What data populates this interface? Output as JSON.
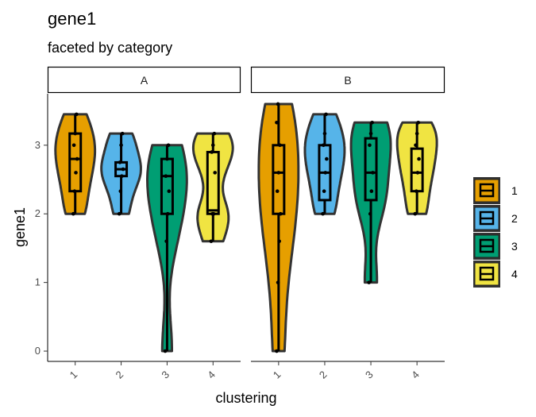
{
  "chart_data": {
    "type": "violin",
    "title": "gene1",
    "subtitle": "faceted by category",
    "xlabel": "clustering",
    "ylabel": "gene1",
    "ylim": [
      -0.15,
      3.75
    ],
    "yticks": [
      0,
      1,
      2,
      3
    ],
    "categories": [
      "1",
      "2",
      "3",
      "4"
    ],
    "legend": {
      "position": "right",
      "entries": [
        "1",
        "2",
        "3",
        "4"
      ]
    },
    "colors": {
      "1": "#E69F00",
      "2": "#56B4E9",
      "3": "#009E73",
      "4": "#F0E442"
    },
    "facets": [
      {
        "label": "A",
        "groups": [
          {
            "cluster": "1",
            "min": 2.0,
            "q1": 2.33,
            "median": 2.8,
            "q3": 3.17,
            "max": 3.45,
            "points": [
              2.0,
              2.33,
              2.6,
              2.8,
              3.0,
              3.17,
              3.45
            ]
          },
          {
            "cluster": "2",
            "min": 2.0,
            "q1": 2.55,
            "median": 2.65,
            "q3": 2.75,
            "max": 3.17,
            "points": [
              2.0,
              2.33,
              2.55,
              2.65,
              2.75,
              3.0,
              3.17
            ]
          },
          {
            "cluster": "3",
            "min": 0.0,
            "q1": 2.0,
            "median": 2.55,
            "q3": 2.8,
            "max": 3.0,
            "points": [
              0.0,
              1.6,
              2.0,
              2.33,
              2.55,
              2.8,
              3.0
            ]
          },
          {
            "cluster": "4",
            "min": 1.6,
            "q1": 2.0,
            "median": 2.05,
            "q3": 2.9,
            "max": 3.17,
            "points": [
              1.6,
              2.0,
              2.0,
              2.6,
              2.9,
              3.0,
              3.17
            ]
          }
        ]
      },
      {
        "label": "B",
        "groups": [
          {
            "cluster": "1",
            "min": 0.0,
            "q1": 2.0,
            "median": 2.6,
            "q3": 3.0,
            "max": 3.6,
            "points": [
              0.0,
              1.0,
              1.6,
              2.0,
              2.33,
              2.6,
              3.0,
              3.33,
              3.6
            ]
          },
          {
            "cluster": "2",
            "min": 2.0,
            "q1": 2.2,
            "median": 2.6,
            "q3": 3.0,
            "max": 3.45,
            "points": [
              2.0,
              2.33,
              2.6,
              2.8,
              3.0,
              3.17,
              3.45
            ]
          },
          {
            "cluster": "3",
            "min": 1.0,
            "q1": 2.2,
            "median": 2.6,
            "q3": 3.1,
            "max": 3.33,
            "points": [
              1.0,
              2.0,
              2.33,
              2.6,
              3.0,
              3.17,
              3.33
            ]
          },
          {
            "cluster": "4",
            "min": 2.0,
            "q1": 2.33,
            "median": 2.6,
            "q3": 2.95,
            "max": 3.33,
            "points": [
              2.0,
              2.33,
              2.6,
              2.8,
              3.0,
              3.17,
              3.33
            ]
          }
        ]
      }
    ]
  }
}
